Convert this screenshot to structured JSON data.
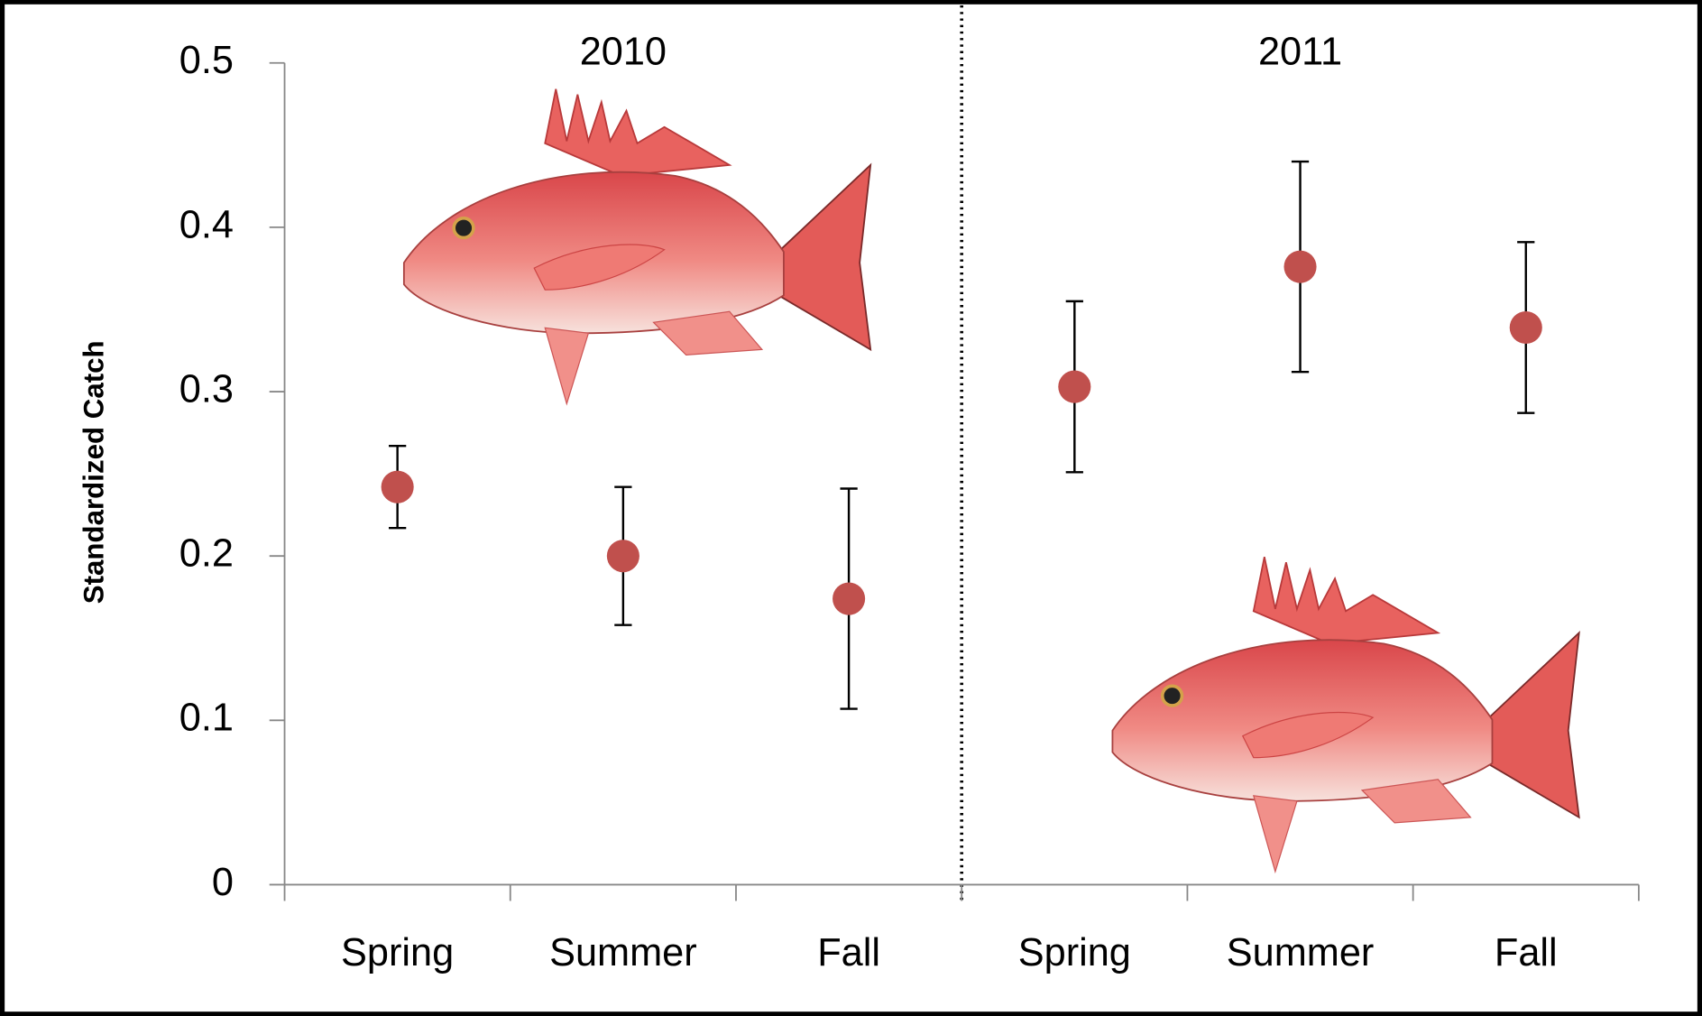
{
  "chart_data": {
    "type": "scatter",
    "y_label": "Standardized Catch",
    "groups": [
      "2010",
      "2011"
    ],
    "categories": [
      "Spring",
      "Summer",
      "Fall",
      "Spring",
      "Summer",
      "Fall"
    ],
    "values": [
      0.242,
      0.2,
      0.174,
      0.303,
      0.376,
      0.339
    ],
    "errors": [
      0.025,
      0.042,
      0.067,
      0.052,
      0.064,
      0.052
    ],
    "color": "#c0504d",
    "ylim": [
      0,
      0.5
    ],
    "yticks": [
      0,
      0.1,
      0.2,
      0.3,
      0.4,
      0.5
    ],
    "grid": false
  }
}
